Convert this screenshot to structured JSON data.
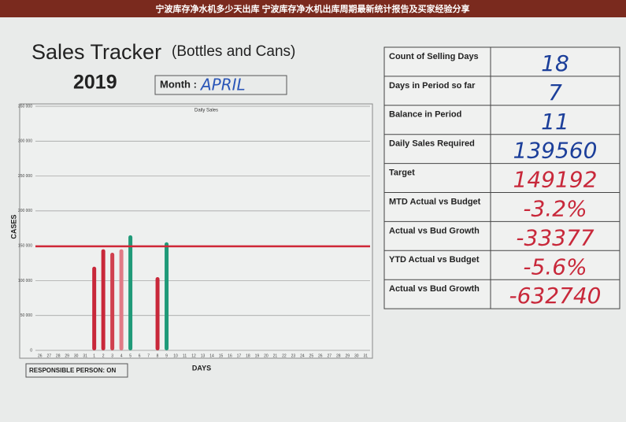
{
  "banner": "宁波库存净水机多少天出库 宁波库存净水机出库周期最新统计报告及买家经验分享",
  "header": {
    "title": "Sales Tracker",
    "subtitle": "(Bottles and Cans)",
    "year": "2019",
    "month_label": "Month :",
    "month": "APRIL"
  },
  "responsible": "RESPONSIBLE PERSON: ON",
  "chart_data": {
    "type": "bar",
    "title": "Daily Sales",
    "y_label": "CASES",
    "x_label": "DAYS",
    "categories": [
      "26",
      "27",
      "28",
      "29",
      "30",
      "31",
      "1",
      "2",
      "3",
      "4",
      "5",
      "6",
      "7",
      "8",
      "9",
      "10",
      "11",
      "12",
      "13",
      "14",
      "15",
      "16",
      "17",
      "18",
      "19",
      "20",
      "21",
      "22",
      "23",
      "24",
      "25",
      "26",
      "27",
      "28",
      "29",
      "30",
      "31"
    ],
    "values": [
      null,
      null,
      null,
      null,
      null,
      null,
      120000,
      145000,
      140000,
      145000,
      165000,
      null,
      null,
      105000,
      155000,
      null,
      null,
      null,
      null,
      null,
      null,
      null,
      null,
      null,
      null,
      null,
      null,
      null,
      null,
      null,
      null,
      null,
      null,
      null,
      null,
      null,
      null
    ],
    "colors": [
      null,
      null,
      null,
      null,
      null,
      null,
      "#c8283a",
      "#c8283a",
      "#d0404e",
      "#e07a86",
      "#1f9a78",
      null,
      null,
      "#c8283a",
      "#1f9a78",
      null,
      null,
      null,
      null,
      null,
      null,
      null,
      null,
      null,
      null,
      null,
      null,
      null,
      null,
      null,
      null,
      null,
      null,
      null,
      null,
      null,
      null
    ],
    "target_line": 149192,
    "target_color": "#d02838",
    "ylim": [
      0,
      350000
    ],
    "yticks": [
      0,
      {
        "value": 50000,
        "label": "50 000"
      },
      {
        "value": 100000,
        "label": "100 000"
      },
      {
        "value": 150000,
        "label": "150 000"
      },
      {
        "value": 200000,
        "label": "200 000"
      },
      {
        "value": 250000,
        "label": "250 000"
      },
      {
        "value": 300000,
        "label": "300 000"
      },
      {
        "value": 350000,
        "label": "350 000"
      }
    ],
    "grid": true
  },
  "table": {
    "rows": [
      [
        "Count of Selling Days",
        "18"
      ],
      [
        "Days in Period so far",
        "7"
      ],
      [
        "Balance in Period",
        "11"
      ],
      [
        "Daily Sales Required",
        "139560"
      ],
      [
        "Target",
        "149192"
      ],
      [
        "MTD Actual vs Budget",
        "-3.2%"
      ],
      [
        "Actual vs Bud Growth",
        "-33377"
      ],
      [
        "YTD Actual vs Budget",
        "-5.6%"
      ],
      [
        "Actual vs Bud Growth",
        "-632740"
      ]
    ]
  }
}
